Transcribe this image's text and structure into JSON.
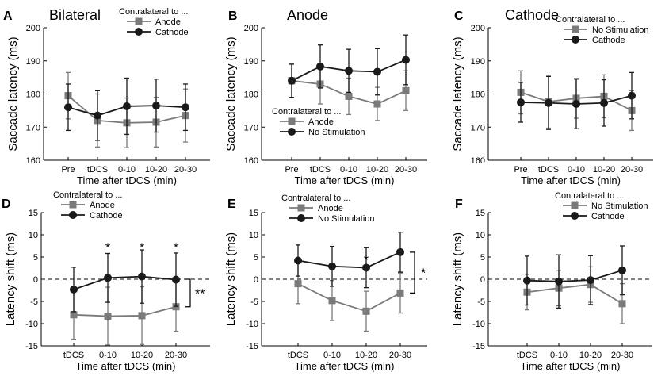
{
  "colors": {
    "series_a": "#7a7a7a",
    "series_b": "#1a1a1a"
  },
  "chart_data": [
    {
      "letter": "A",
      "title": "Bilateral",
      "type": "line",
      "ylabel": "Saccade latency (ms)",
      "xlabel": "Time after tDCS (min)",
      "categories": [
        "Pre",
        "tDCS",
        "0-10",
        "10-20",
        "20-30"
      ],
      "ylim": [
        160,
        200
      ],
      "yticks": [
        "160",
        "170",
        "180",
        "190",
        "200"
      ],
      "legend": {
        "title": "Contralateral to ...",
        "position": "top-right"
      },
      "series": [
        {
          "name": "Anode",
          "values": [
            179.5,
            172,
            171.3,
            171.5,
            173.5
          ],
          "err": [
            7,
            8,
            7.5,
            7.5,
            8
          ]
        },
        {
          "name": "Cathode",
          "values": [
            176,
            173.5,
            176.3,
            176.5,
            176
          ],
          "err": [
            7,
            7.5,
            8.5,
            8,
            7
          ]
        }
      ],
      "annotations": []
    },
    {
      "letter": "B",
      "title": "Anode",
      "type": "line",
      "ylabel": "Saccade latency (ms)",
      "xlabel": "Time after tDCS (min)",
      "categories": [
        "Pre",
        "tDCS",
        "0-10",
        "10-20",
        "20-30"
      ],
      "ylim": [
        160,
        200
      ],
      "yticks": [
        "160",
        "170",
        "180",
        "190",
        "200"
      ],
      "legend": {
        "title": "Contralateral to ...",
        "position": "bottom-left"
      },
      "series": [
        {
          "name": "Anode",
          "values": [
            184,
            183,
            179.3,
            177,
            181
          ],
          "err": [
            5,
            6,
            5.5,
            5,
            6
          ]
        },
        {
          "name": "No Stimulation",
          "values": [
            184,
            188.3,
            187,
            186.7,
            190.3
          ],
          "err": [
            5,
            6.5,
            6.5,
            7,
            7.5
          ]
        }
      ],
      "annotations": []
    },
    {
      "letter": "C",
      "title": "Cathode",
      "type": "line",
      "ylabel": "Saccade latency (ms)",
      "xlabel": "Time after tDCS (min)",
      "categories": [
        "Pre",
        "tDCS",
        "0-10",
        "10-20",
        "20-30"
      ],
      "ylim": [
        160,
        200
      ],
      "yticks": [
        "160",
        "170",
        "180",
        "190",
        "200"
      ],
      "legend": {
        "title": "Contralateral to ...",
        "position": "top-right"
      },
      "series": [
        {
          "name": "No Stimulation",
          "values": [
            180.5,
            177.7,
            178.7,
            179.3,
            175
          ],
          "err": [
            6.5,
            8,
            6,
            6.5,
            6
          ]
        },
        {
          "name": "Cathode",
          "values": [
            177.5,
            177.3,
            177,
            177.3,
            179.5
          ],
          "err": [
            6,
            8,
            7.5,
            7,
            7
          ]
        }
      ],
      "annotations": []
    },
    {
      "letter": "D",
      "title": "",
      "type": "line",
      "ylabel": "Latency shift (ms)",
      "xlabel": "Time after tDCS (min)",
      "categories": [
        "tDCS",
        "0-10",
        "10-20",
        "20-30"
      ],
      "ylim": [
        -15,
        15
      ],
      "yticks": [
        "-15",
        "-10",
        "-5",
        "0",
        "5",
        "10",
        "15"
      ],
      "legend": {
        "title": "Contralateral to ...",
        "position": "top-left"
      },
      "series": [
        {
          "name": "Anode",
          "values": [
            -8,
            -8.3,
            -8.2,
            -6.2
          ],
          "err": [
            5.5,
            6.5,
            6.5,
            5.5
          ]
        },
        {
          "name": "Cathode",
          "values": [
            -2.3,
            0.3,
            0.6,
            -0.1
          ],
          "err": [
            5,
            5.5,
            6,
            6
          ]
        }
      ],
      "annotations": [
        "*",
        "*",
        "*",
        "**"
      ]
    },
    {
      "letter": "E",
      "title": "",
      "type": "line",
      "ylabel": "Latency shift (ms)",
      "xlabel": "Time after tDCS (min)",
      "categories": [
        "tDCS",
        "0-10",
        "10-20",
        "20-30"
      ],
      "ylim": [
        -15,
        15
      ],
      "yticks": [
        "-15",
        "-10",
        "-5",
        "0",
        "5",
        "10",
        "15"
      ],
      "legend": {
        "title": "Contralateral to ...",
        "position": "top-left"
      },
      "series": [
        {
          "name": "Anode",
          "values": [
            -1,
            -4.8,
            -7.2,
            -3.1
          ],
          "err": [
            4.5,
            4.5,
            4.5,
            4.5
          ]
        },
        {
          "name": "No Stimulation",
          "values": [
            4.2,
            2.9,
            2.6,
            6.1
          ],
          "err": [
            3.5,
            4.5,
            4.5,
            4.5
          ]
        }
      ],
      "annotations": [
        "*",
        "*"
      ]
    },
    {
      "letter": "F",
      "title": "",
      "type": "line",
      "ylabel": "Latency shift (ms)",
      "xlabel": "Time after tDCS (min)",
      "categories": [
        "tDCS",
        "0-10",
        "10-20",
        "20-30"
      ],
      "ylim": [
        -15,
        15
      ],
      "yticks": [
        "-15",
        "-10",
        "-5",
        "0",
        "5",
        "10",
        "15"
      ],
      "legend": {
        "title": "Contralateral to ...",
        "position": "top-right"
      },
      "series": [
        {
          "name": "No Stimulation",
          "values": [
            -2.9,
            -2,
            -1.2,
            -5.5
          ],
          "err": [
            4,
            4,
            4,
            4.5
          ]
        },
        {
          "name": "Cathode",
          "values": [
            -0.3,
            -0.5,
            -0.2,
            2
          ],
          "err": [
            5.5,
            6,
            5.5,
            5.5
          ]
        }
      ],
      "annotations": []
    }
  ]
}
